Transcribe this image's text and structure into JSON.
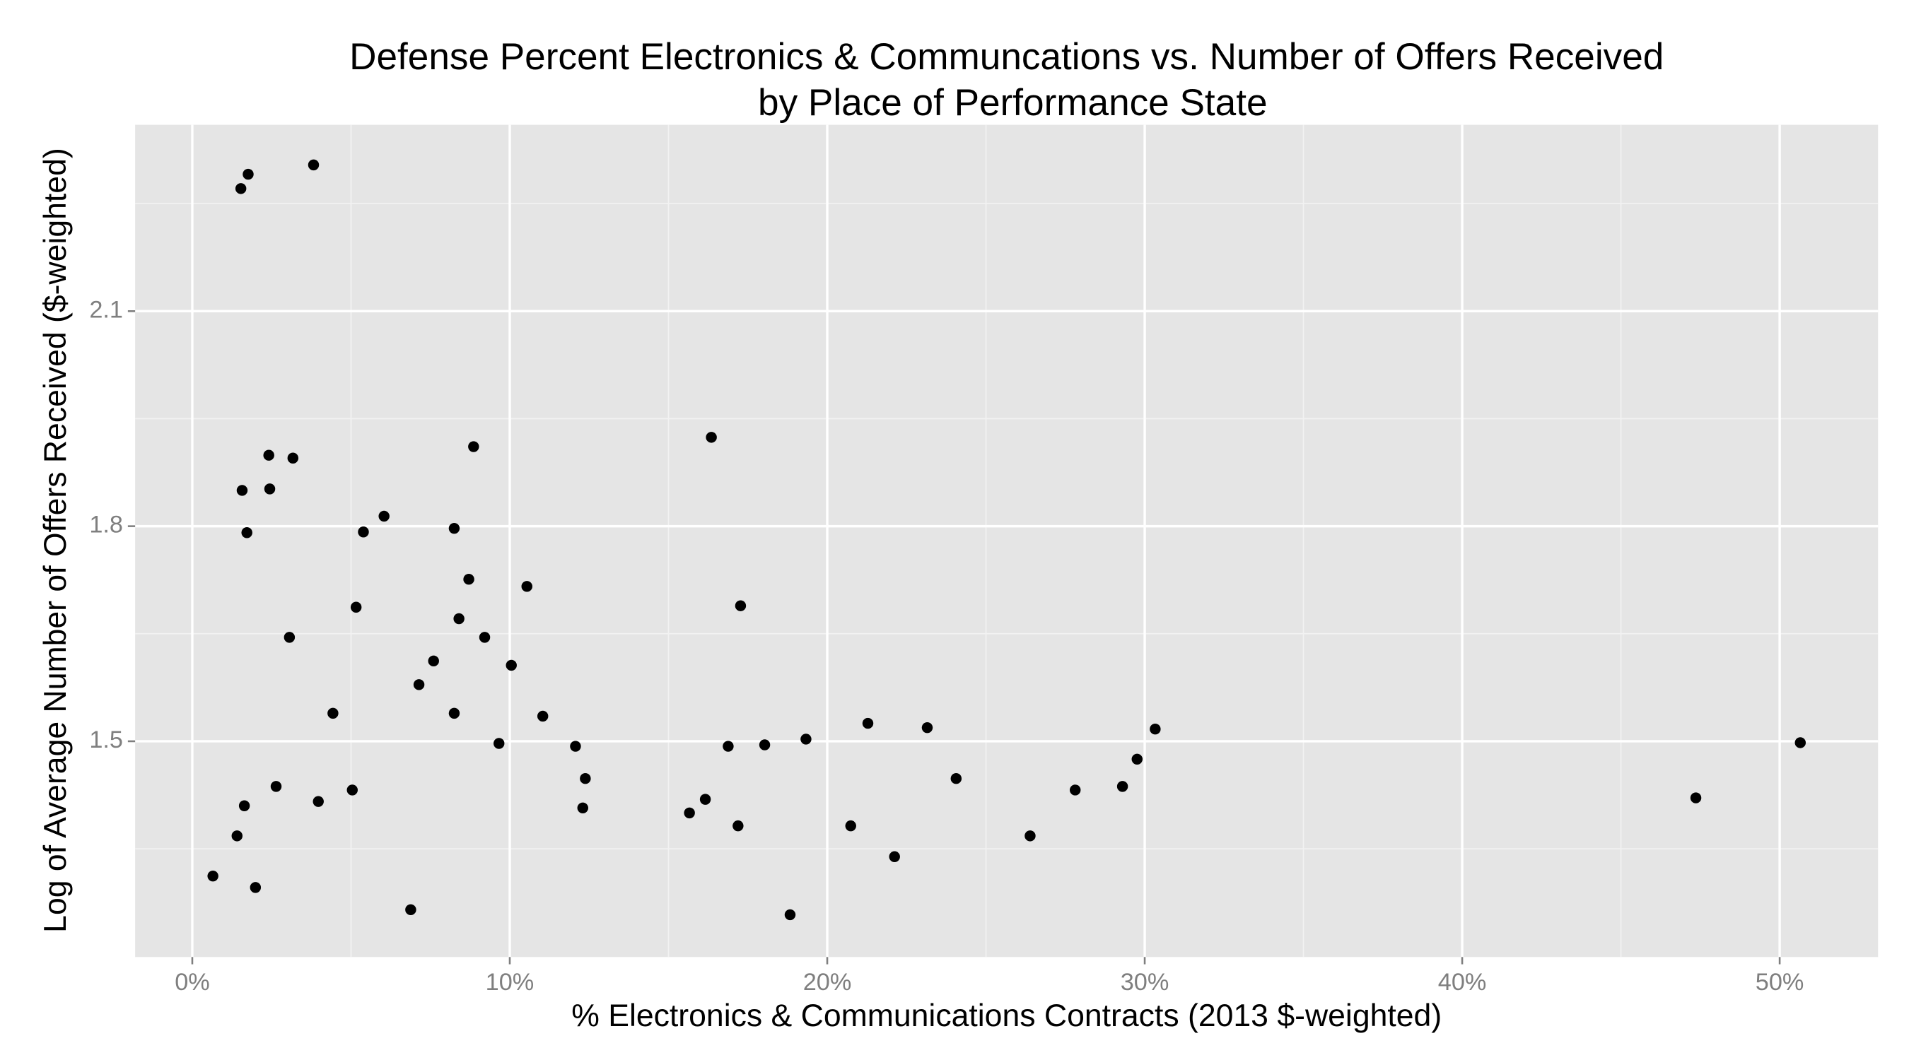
{
  "chart_data": {
    "type": "scatter",
    "title": [
      "Defense Percent Electronics & Communcations vs. Number of Offers Received",
      "by Place of Performance State"
    ],
    "x_label": "% Electronics & Communications Contracts (2013 $-weighted)",
    "y_label": "Log of Average Number of Offers Received ($-weighted)",
    "xlim": [
      -1.8,
      53.1
    ],
    "ylim": [
      1.199,
      2.36
    ],
    "xticks": [
      {
        "value": 0,
        "label": "0%"
      },
      {
        "value": 10,
        "label": "10%"
      },
      {
        "value": 20,
        "label": "20%"
      },
      {
        "value": 30,
        "label": "30%"
      },
      {
        "value": 40,
        "label": "40%"
      },
      {
        "value": 50,
        "label": "50%"
      }
    ],
    "yticks": [
      1.5,
      1.8,
      2.1
    ],
    "grid": true,
    "panel_color": "#e5e5e5",
    "series": [
      {
        "color": "#000000",
        "x": [
          1.53,
          1.76,
          3.82,
          16.35,
          8.86,
          2.41,
          3.17,
          1.57,
          2.44,
          6.04,
          8.25,
          1.72,
          5.39,
          8.71,
          10.54,
          17.27,
          5.16,
          8.4,
          3.06,
          9.21,
          7.6,
          10.05,
          7.14,
          4.43,
          8.25,
          11.04,
          9.66,
          12.07,
          16.88,
          18.03,
          19.33,
          21.28,
          23.15,
          30.33,
          29.76,
          50.65,
          12.38,
          24.06,
          2.64,
          5.04,
          29.3,
          27.81,
          1.64,
          3.97,
          16.16,
          12.3,
          15.66,
          47.36,
          17.19,
          20.74,
          1.41,
          26.39,
          22.12,
          0.65,
          1.99,
          6.88,
          18.83
        ],
        "values": [
          2.271,
          2.291,
          2.304,
          1.924,
          1.911,
          1.899,
          1.895,
          1.85,
          1.852,
          1.814,
          1.797,
          1.791,
          1.792,
          1.726,
          1.716,
          1.689,
          1.687,
          1.671,
          1.645,
          1.645,
          1.612,
          1.606,
          1.579,
          1.539,
          1.539,
          1.535,
          1.497,
          1.493,
          1.493,
          1.495,
          1.503,
          1.525,
          1.519,
          1.517,
          1.475,
          1.498,
          1.448,
          1.448,
          1.437,
          1.432,
          1.437,
          1.432,
          1.41,
          1.416,
          1.419,
          1.407,
          1.4,
          1.421,
          1.382,
          1.382,
          1.368,
          1.368,
          1.339,
          1.312,
          1.296,
          1.265,
          1.258
        ]
      }
    ]
  }
}
